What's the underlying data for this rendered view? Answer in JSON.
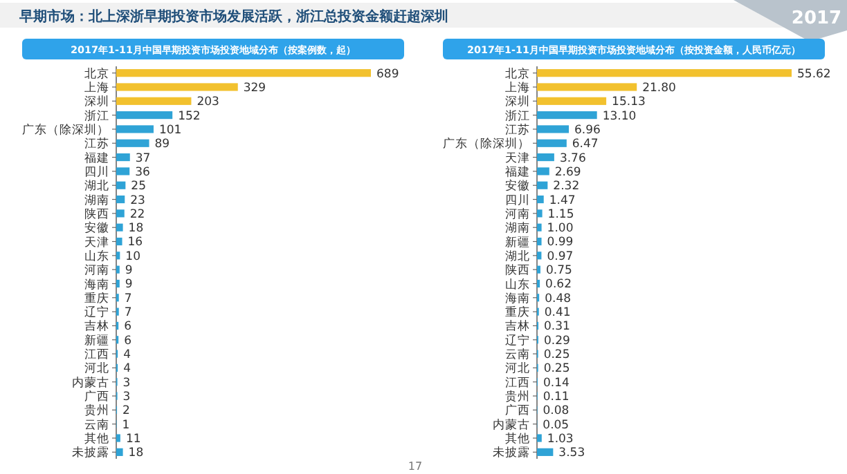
{
  "chart_data": [
    {
      "type": "other",
      "title": "早期市场：北上深浙早期投资市场发展活跃，浙江总投资金额赶超深圳",
      "annotations": [
        "2017",
        "17"
      ]
    },
    {
      "type": "bar",
      "orientation": "horizontal",
      "title": "2017年1-11月中国早期投资市场投资地域分布（按案例数，起）",
      "data_labels": true,
      "categories": [
        "北京",
        "上海",
        "深圳",
        "浙江",
        "广东（除深圳）",
        "江苏",
        "福建",
        "四川",
        "湖北",
        "湖南",
        "陕西",
        "安徽",
        "天津",
        "山东",
        "河南",
        "海南",
        "重庆",
        "辽宁",
        "吉林",
        "新疆",
        "江西",
        "河北",
        "内蒙古",
        "广西",
        "贵州",
        "云南",
        "其他",
        "未披露"
      ],
      "values": [
        689,
        329,
        203,
        152,
        101,
        89,
        37,
        36,
        25,
        23,
        22,
        18,
        16,
        10,
        9,
        9,
        7,
        7,
        6,
        6,
        4,
        4,
        3,
        3,
        2,
        1,
        11,
        18
      ],
      "colors": [
        "#f2c12e",
        "#f2c12e",
        "#f2c12e",
        "#2fa3d6",
        "#2fa3d6",
        "#2fa3d6",
        "#2fa3d6",
        "#2fa3d6",
        "#2fa3d6",
        "#2fa3d6",
        "#2fa3d6",
        "#2fa3d6",
        "#2fa3d6",
        "#2fa3d6",
        "#2fa3d6",
        "#2fa3d6",
        "#2fa3d6",
        "#2fa3d6",
        "#2fa3d6",
        "#2fa3d6",
        "#2fa3d6",
        "#2fa3d6",
        "#2fa3d6",
        "#2fa3d6",
        "#2fa3d6",
        "#2fa3d6",
        "#2fa3d6",
        "#2fa3d6"
      ]
    },
    {
      "type": "bar",
      "orientation": "horizontal",
      "title": "2017年1-11月中国早期投资市场投资地域分布（按投资金额，人民币亿元）",
      "categories": [
        "北京",
        "上海",
        "深圳",
        "浙江",
        "江苏",
        "广东（除深圳）",
        "天津",
        "福建",
        "安徽",
        "四川",
        "河南",
        "湖南",
        "新疆",
        "湖北",
        "陕西",
        "山东",
        "海南",
        "重庆",
        "吉林",
        "辽宁",
        "云南",
        "河北",
        "江西",
        "贵州",
        "广西",
        "内蒙古",
        "其他",
        "未披露"
      ],
      "values": [
        55.62,
        21.8,
        15.13,
        13.1,
        6.96,
        6.47,
        3.76,
        2.69,
        2.32,
        1.47,
        1.15,
        1.0,
        0.99,
        0.97,
        0.75,
        0.62,
        0.48,
        0.41,
        0.31,
        0.29,
        0.25,
        0.25,
        0.14,
        0.11,
        0.08,
        0.05,
        1.03,
        3.53
      ],
      "value_labels": [
        "55.62",
        "21.80",
        "15.13",
        "13.10",
        "6.96",
        "6.47",
        "3.76",
        "2.69",
        "2.32",
        "1.47",
        "1.15",
        "1.00",
        "0.99",
        "0.97",
        "0.75",
        "0.62",
        "0.48",
        "0.41",
        "0.31",
        "0.29",
        "0.25",
        "0.25",
        "0.14",
        "0.11",
        "0.08",
        "0.05",
        "1.03",
        "3.53"
      ],
      "colors": [
        "#f2c12e",
        "#f2c12e",
        "#f2c12e",
        "#2fa3d6",
        "#2fa3d6",
        "#2fa3d6",
        "#2fa3d6",
        "#2fa3d6",
        "#2fa3d6",
        "#2fa3d6",
        "#2fa3d6",
        "#2fa3d6",
        "#2fa3d6",
        "#2fa3d6",
        "#2fa3d6",
        "#2fa3d6",
        "#2fa3d6",
        "#2fa3d6",
        "#2fa3d6",
        "#2fa3d6",
        "#2fa3d6",
        "#2fa3d6",
        "#2fa3d6",
        "#2fa3d6",
        "#2fa3d6",
        "#2fa3d6",
        "#2fa3d6",
        "#2fa3d6"
      ]
    }
  ]
}
